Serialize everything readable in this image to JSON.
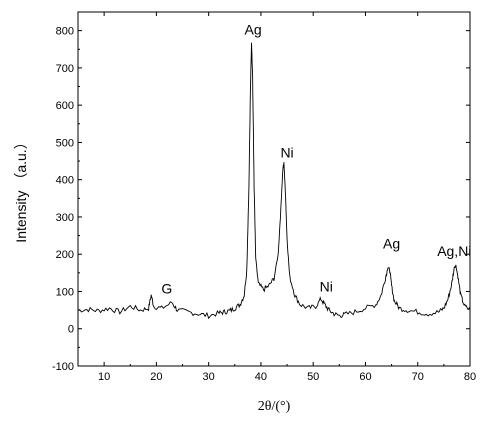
{
  "chart_data": {
    "type": "line",
    "xlabel": "2θ/(°)",
    "ylabel": "Intensity （a.u.）",
    "xlim": [
      5,
      80
    ],
    "ylim": [
      -100,
      850
    ],
    "xticks": [
      10,
      20,
      30,
      40,
      50,
      60,
      70,
      80
    ],
    "yticks": [
      -100,
      0,
      100,
      200,
      300,
      400,
      500,
      600,
      700,
      800
    ],
    "xtick_labels": [
      "10",
      "20",
      "30",
      "40",
      "50",
      "60",
      "70",
      "80"
    ],
    "ytick_labels": [
      "-100",
      "0",
      "100",
      "200",
      "300",
      "400",
      "500",
      "600",
      "700",
      "800"
    ],
    "grid": false,
    "series": [
      {
        "x": [
          5,
          7,
          9,
          11,
          13,
          15,
          17,
          18.5,
          19,
          19.5,
          21,
          23,
          24,
          26,
          28,
          30,
          32,
          33,
          34,
          35,
          36,
          36.8,
          37.3,
          37.7,
          38.0,
          38.2,
          38.4,
          38.7,
          39.0,
          39.5,
          40.5,
          41.5,
          42.5,
          43.3,
          43.8,
          44.2,
          44.4,
          44.7,
          45.0,
          45.5,
          46.5,
          47.5,
          49,
          50.5,
          51.5,
          52.2,
          53.0,
          54.0,
          55,
          56,
          58,
          60,
          62,
          63,
          63.8,
          64.3,
          64.6,
          65.0,
          65.5,
          66.5,
          68,
          70,
          72,
          74,
          75,
          75.8,
          76.5,
          77.0,
          77.3,
          77.7,
          78.2,
          79.0,
          80
        ],
        "values": [
          50,
          52,
          48,
          55,
          45,
          60,
          50,
          55,
          90,
          60,
          55,
          70,
          50,
          45,
          40,
          35,
          42,
          45,
          48,
          55,
          65,
          90,
          160,
          380,
          650,
          770,
          680,
          380,
          190,
          120,
          105,
          115,
          135,
          200,
          320,
          430,
          445,
          360,
          240,
          140,
          90,
          65,
          55,
          60,
          80,
          65,
          50,
          40,
          35,
          38,
          45,
          55,
          65,
          90,
          135,
          165,
          160,
          115,
          75,
          55,
          50,
          45,
          40,
          45,
          55,
          80,
          120,
          165,
          170,
          140,
          90,
          60,
          50
        ]
      }
    ],
    "annotations": [
      {
        "text": "Ag",
        "x": 38.5,
        "y": 790
      },
      {
        "text": "Ni",
        "x": 45.0,
        "y": 460
      },
      {
        "text": "G",
        "x": 22.0,
        "y": 95
      },
      {
        "text": "Ni",
        "x": 52.5,
        "y": 100
      },
      {
        "text": "Ag",
        "x": 65.0,
        "y": 215
      },
      {
        "text": "Ag,Ni",
        "x": 77.0,
        "y": 195
      }
    ]
  }
}
